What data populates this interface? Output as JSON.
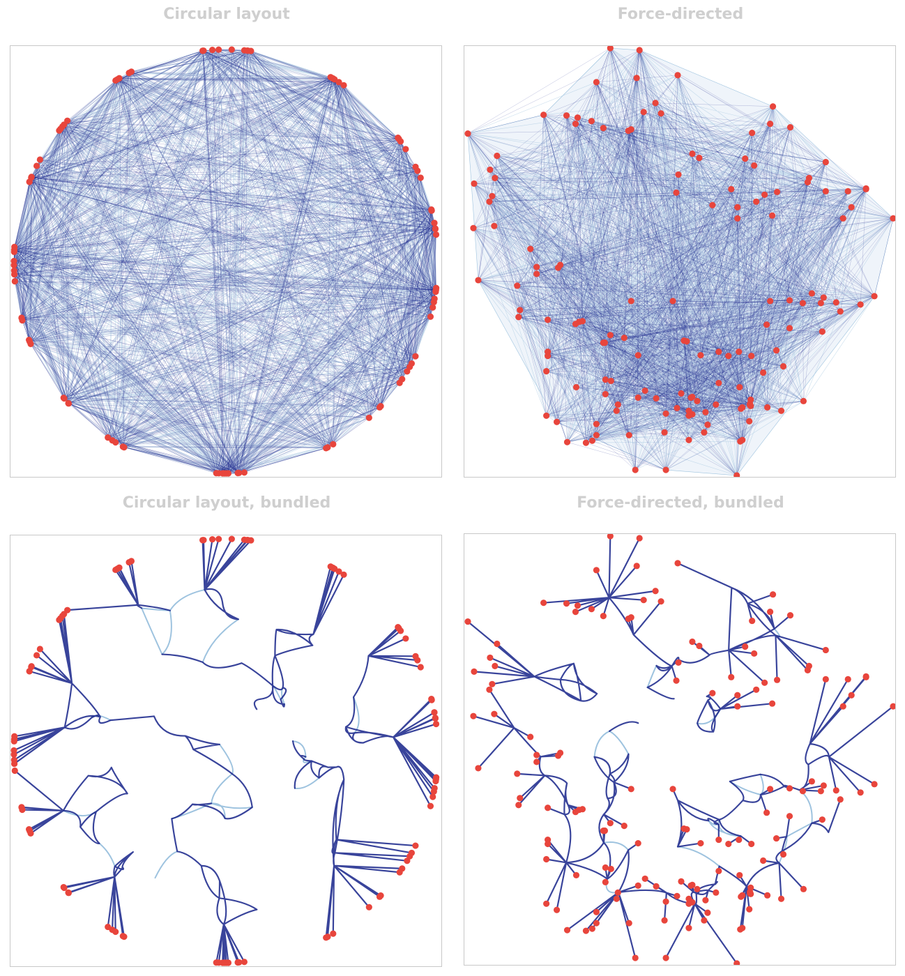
{
  "panels": [
    {
      "title": "Circular layout"
    },
    {
      "title": "Force-directed"
    },
    {
      "title": "Circular layout, bundled"
    },
    {
      "title": "Force-directed, bundled"
    }
  ],
  "colors": {
    "node": "#e8453c",
    "edge_dark": "#16238a",
    "edge_light": "#9ec3df",
    "border": "#c8c8c8",
    "title": "#cfcfcf"
  }
}
